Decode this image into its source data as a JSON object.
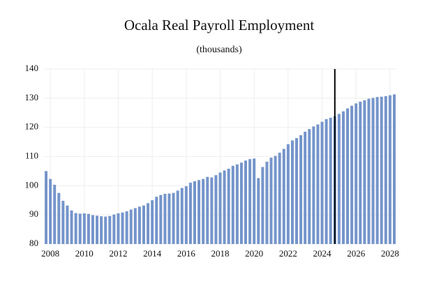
{
  "chart_data": {
    "type": "bar",
    "title": "Ocala Real Payroll Employment",
    "subtitle": "(thousands)",
    "categories": [
      null,
      "2008",
      null,
      null,
      null,
      null,
      null,
      null,
      null,
      "2010",
      null,
      null,
      null,
      null,
      null,
      null,
      null,
      "2012",
      null,
      null,
      null,
      null,
      null,
      null,
      null,
      "2014",
      null,
      null,
      null,
      null,
      null,
      null,
      null,
      "2016",
      null,
      null,
      null,
      null,
      null,
      null,
      null,
      "2018",
      null,
      null,
      null,
      null,
      null,
      null,
      null,
      "2020",
      null,
      null,
      null,
      null,
      null,
      null,
      null,
      "2022",
      null,
      null,
      null,
      null,
      null,
      null,
      null,
      "2024",
      null,
      null,
      null,
      null,
      null,
      null,
      null,
      "2026",
      null,
      null,
      null,
      null,
      null,
      null,
      null,
      "2028",
      null
    ],
    "values": [
      105,
      102.3,
      100.3,
      97.5,
      94.8,
      93.2,
      91.5,
      90.6,
      90.4,
      90.5,
      90.3,
      89.9,
      89.7,
      89.5,
      89.4,
      89.6,
      90.1,
      90.5,
      90.8,
      91.2,
      91.8,
      92.3,
      92.8,
      93.2,
      94.0,
      95.0,
      96.2,
      96.8,
      97.2,
      97.3,
      97.5,
      98.3,
      99.2,
      99.8,
      101.0,
      101.5,
      101.9,
      102.3,
      103.0,
      102.8,
      103.6,
      104.5,
      105.2,
      105.8,
      106.8,
      107.3,
      107.9,
      108.6,
      109.1,
      109.3,
      102.6,
      106.4,
      108.2,
      109.6,
      110.2,
      111.3,
      112.6,
      114.2,
      115.5,
      116.3,
      117.3,
      118.5,
      119.4,
      120.3,
      121.0,
      121.9,
      122.8,
      123.3,
      123.8,
      124.6,
      125.5,
      126.5,
      127.4,
      128.2,
      128.8,
      129.3,
      129.8,
      130.1,
      130.4,
      130.5,
      130.7,
      131.0,
      131.3
    ],
    "color": "#7595cb",
    "ylim": [
      80,
      140
    ],
    "yticks": [
      80,
      90,
      100,
      110,
      120,
      130,
      140
    ],
    "grid": true,
    "vline_index": 68
  }
}
